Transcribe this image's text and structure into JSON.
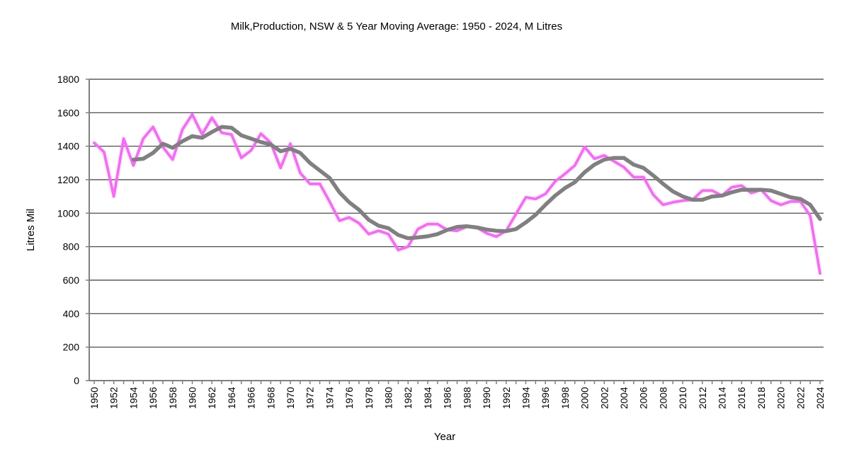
{
  "chart_data": {
    "type": "line",
    "title": "Milk,Production, NSW & 5 Year Moving Average: 1950 - 2024, M Litres",
    "xlabel": "Year",
    "ylabel": "Litres Mil",
    "ylim": [
      0,
      1800
    ],
    "yticks": [
      0,
      200,
      400,
      600,
      800,
      1000,
      1200,
      1400,
      1600,
      1800
    ],
    "xlim": [
      1950,
      2024
    ],
    "xtick_step": 2,
    "grid": true,
    "legend": "none",
    "x": [
      1950,
      1951,
      1952,
      1953,
      1954,
      1955,
      1956,
      1957,
      1958,
      1959,
      1960,
      1961,
      1962,
      1963,
      1964,
      1965,
      1966,
      1967,
      1968,
      1969,
      1970,
      1971,
      1972,
      1973,
      1974,
      1975,
      1976,
      1977,
      1978,
      1979,
      1980,
      1981,
      1982,
      1983,
      1984,
      1985,
      1986,
      1987,
      1988,
      1989,
      1990,
      1991,
      1992,
      1993,
      1994,
      1995,
      1996,
      1997,
      1998,
      1999,
      2000,
      2001,
      2002,
      2003,
      2004,
      2005,
      2006,
      2007,
      2008,
      2009,
      2010,
      2011,
      2012,
      2013,
      2014,
      2015,
      2016,
      2017,
      2018,
      2019,
      2020,
      2021,
      2022,
      2023,
      2024
    ],
    "series": [
      {
        "name": "Milk Production NSW",
        "color": "#ff66ff",
        "values": [
          1420,
          1365,
          1100,
          1445,
          1285,
          1445,
          1515,
          1395,
          1320,
          1500,
          1590,
          1470,
          1570,
          1480,
          1470,
          1330,
          1375,
          1475,
          1420,
          1270,
          1415,
          1240,
          1175,
          1175,
          1070,
          955,
          975,
          940,
          875,
          895,
          875,
          780,
          800,
          905,
          935,
          935,
          900,
          895,
          920,
          915,
          880,
          860,
          895,
          995,
          1095,
          1085,
          1115,
          1190,
          1235,
          1285,
          1395,
          1325,
          1345,
          1310,
          1275,
          1215,
          1215,
          1110,
          1050,
          1065,
          1075,
          1080,
          1135,
          1135,
          1105,
          1155,
          1165,
          1120,
          1140,
          1075,
          1050,
          1070,
          1070,
          985,
          640
        ]
      },
      {
        "name": "5 Year Moving Average",
        "color": "#808080",
        "values": [
          null,
          null,
          null,
          null,
          1320,
          1325,
          1360,
          1415,
          1390,
          1430,
          1460,
          1450,
          1485,
          1515,
          1510,
          1465,
          1445,
          1425,
          1410,
          1370,
          1385,
          1360,
          1300,
          1255,
          1210,
          1125,
          1065,
          1020,
          960,
          925,
          910,
          870,
          850,
          855,
          862,
          875,
          900,
          918,
          922,
          915,
          902,
          895,
          893,
          905,
          945,
          990,
          1050,
          1105,
          1150,
          1185,
          1245,
          1290,
          1320,
          1330,
          1330,
          1290,
          1270,
          1225,
          1175,
          1130,
          1100,
          1080,
          1080,
          1100,
          1105,
          1125,
          1140,
          1140,
          1140,
          1135,
          1115,
          1095,
          1085,
          1050,
          965
        ]
      }
    ]
  }
}
